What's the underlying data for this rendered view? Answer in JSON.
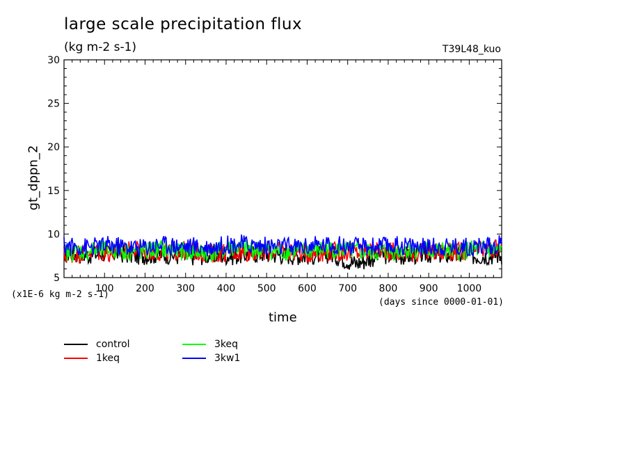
{
  "chart_data": {
    "type": "line",
    "title": "large scale precipitation flux",
    "subtitle": "(kg m-2 s-1)",
    "run_id": "T39L48_kuo",
    "xlabel": "time",
    "ylabel": "gt_dppn_2",
    "y_unit_note": "(x1E-6 kg m-2 s-1)",
    "x_unit_note": "(days since 0000-01-01)",
    "xlim": [
      0,
      1080
    ],
    "ylim": [
      5,
      30
    ],
    "xticks": [
      100,
      200,
      300,
      400,
      500,
      600,
      700,
      800,
      900,
      1000
    ],
    "xtick_labels": [
      "100",
      "200",
      "300",
      "400",
      "500",
      "600",
      "700",
      "800",
      "900",
      "1000"
    ],
    "yticks": [
      5,
      10,
      15,
      20,
      25,
      30
    ],
    "ytick_labels": [
      "5",
      "10",
      "15",
      "20",
      "25",
      "30"
    ],
    "grid": false,
    "legend_position": "bottom-left",
    "series": [
      {
        "name": "control",
        "color": "#000000",
        "x": [
          0,
          60,
          120,
          180,
          240,
          300,
          360,
          420,
          480,
          540,
          600,
          660,
          720,
          780,
          840,
          900,
          960,
          1020,
          1080
        ],
        "values": [
          7.8,
          7.6,
          7.9,
          7.5,
          7.7,
          7.4,
          7.6,
          7.5,
          7.8,
          7.6,
          7.5,
          7.7,
          6.6,
          7.6,
          7.5,
          7.7,
          7.6,
          7.5,
          7.6
        ]
      },
      {
        "name": "1keq",
        "color": "#ff0000",
        "x": [
          0,
          60,
          120,
          180,
          240,
          300,
          360,
          420,
          480,
          540,
          600,
          660,
          720,
          780,
          840,
          900,
          960,
          1020,
          1080
        ],
        "values": [
          7.5,
          8.0,
          7.8,
          8.2,
          7.9,
          8.1,
          7.8,
          8.0,
          7.9,
          8.1,
          7.8,
          8.0,
          7.9,
          8.2,
          7.8,
          8.0,
          7.9,
          8.1,
          8.3
        ]
      },
      {
        "name": "3keq",
        "color": "#00ff00",
        "x": [
          0,
          60,
          120,
          180,
          240,
          300,
          360,
          420,
          480,
          540,
          600,
          660,
          720,
          780,
          840,
          900,
          960,
          1020,
          1080
        ],
        "values": [
          7.9,
          8.1,
          8.2,
          7.9,
          8.3,
          8.0,
          7.8,
          8.4,
          8.2,
          8.0,
          8.1,
          8.3,
          8.0,
          7.9,
          8.2,
          8.1,
          8.0,
          8.2,
          8.1
        ]
      },
      {
        "name": "3kw1",
        "color": "#0000ff",
        "x": [
          0,
          60,
          120,
          180,
          240,
          300,
          360,
          420,
          480,
          540,
          600,
          660,
          720,
          780,
          840,
          900,
          960,
          1020,
          1080
        ],
        "values": [
          8.6,
          8.5,
          8.7,
          8.4,
          8.8,
          8.6,
          8.5,
          8.9,
          8.7,
          8.5,
          8.6,
          8.8,
          8.5,
          8.6,
          8.7,
          8.5,
          8.6,
          8.5,
          8.8
        ]
      }
    ]
  }
}
